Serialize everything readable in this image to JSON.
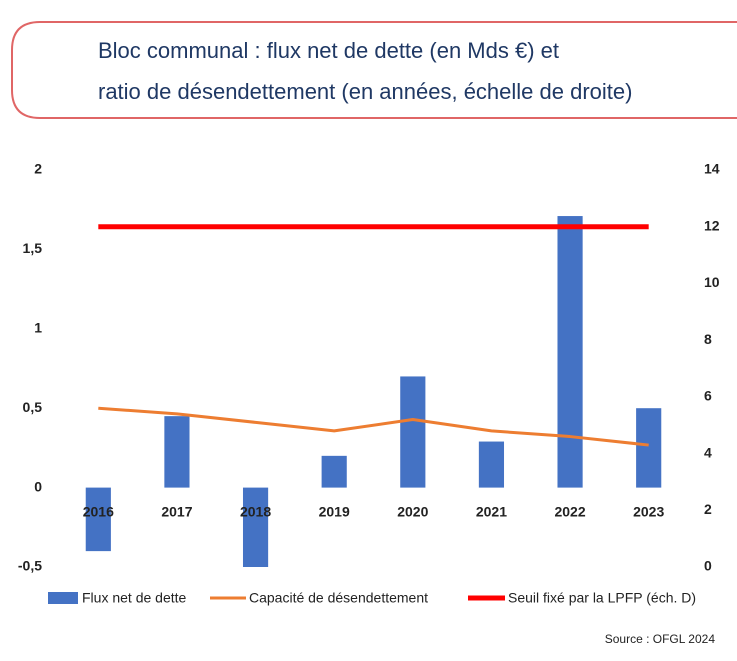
{
  "chart_data": {
    "type": "bar",
    "title": [
      "Bloc communal : flux net de dette (en Mds €) et",
      "ratio de désendettement (en années, échelle de droite)"
    ],
    "categories": [
      "2016",
      "2017",
      "2018",
      "2019",
      "2020",
      "2021",
      "2022",
      "2023"
    ],
    "series": [
      {
        "name": "Flux net de dette",
        "type": "bar",
        "color": "#4472c4",
        "values": [
          -0.4,
          0.45,
          -0.5,
          0.2,
          0.7,
          0.29,
          1.71,
          0.5
        ]
      },
      {
        "name": "Capacité de désendettement",
        "type": "line",
        "axis": "y2",
        "color": "#ed7d31",
        "values": [
          5.6,
          5.4,
          5.1,
          4.8,
          5.2,
          4.8,
          4.6,
          4.3
        ]
      },
      {
        "name": "Seuil fixé par la LPFP (éch. D)",
        "type": "line",
        "axis": "y2",
        "color": "#ff0000",
        "values": [
          12,
          12,
          12,
          12,
          12,
          12,
          12,
          12
        ]
      }
    ],
    "ylim": [
      -0.5,
      2
    ],
    "yticks": [
      {
        "value": -0.5,
        "label": "-0,5"
      },
      0,
      {
        "value": 0.5,
        "label": "0,5"
      },
      1,
      {
        "value": 1.5,
        "label": "1,5"
      },
      2
    ],
    "y2lim": [
      0,
      14
    ],
    "y2ticks": [
      0,
      2,
      4,
      6,
      8,
      10,
      12,
      14
    ],
    "grid": false,
    "legend": "bottom",
    "source": "Source : OFGL 2024"
  }
}
